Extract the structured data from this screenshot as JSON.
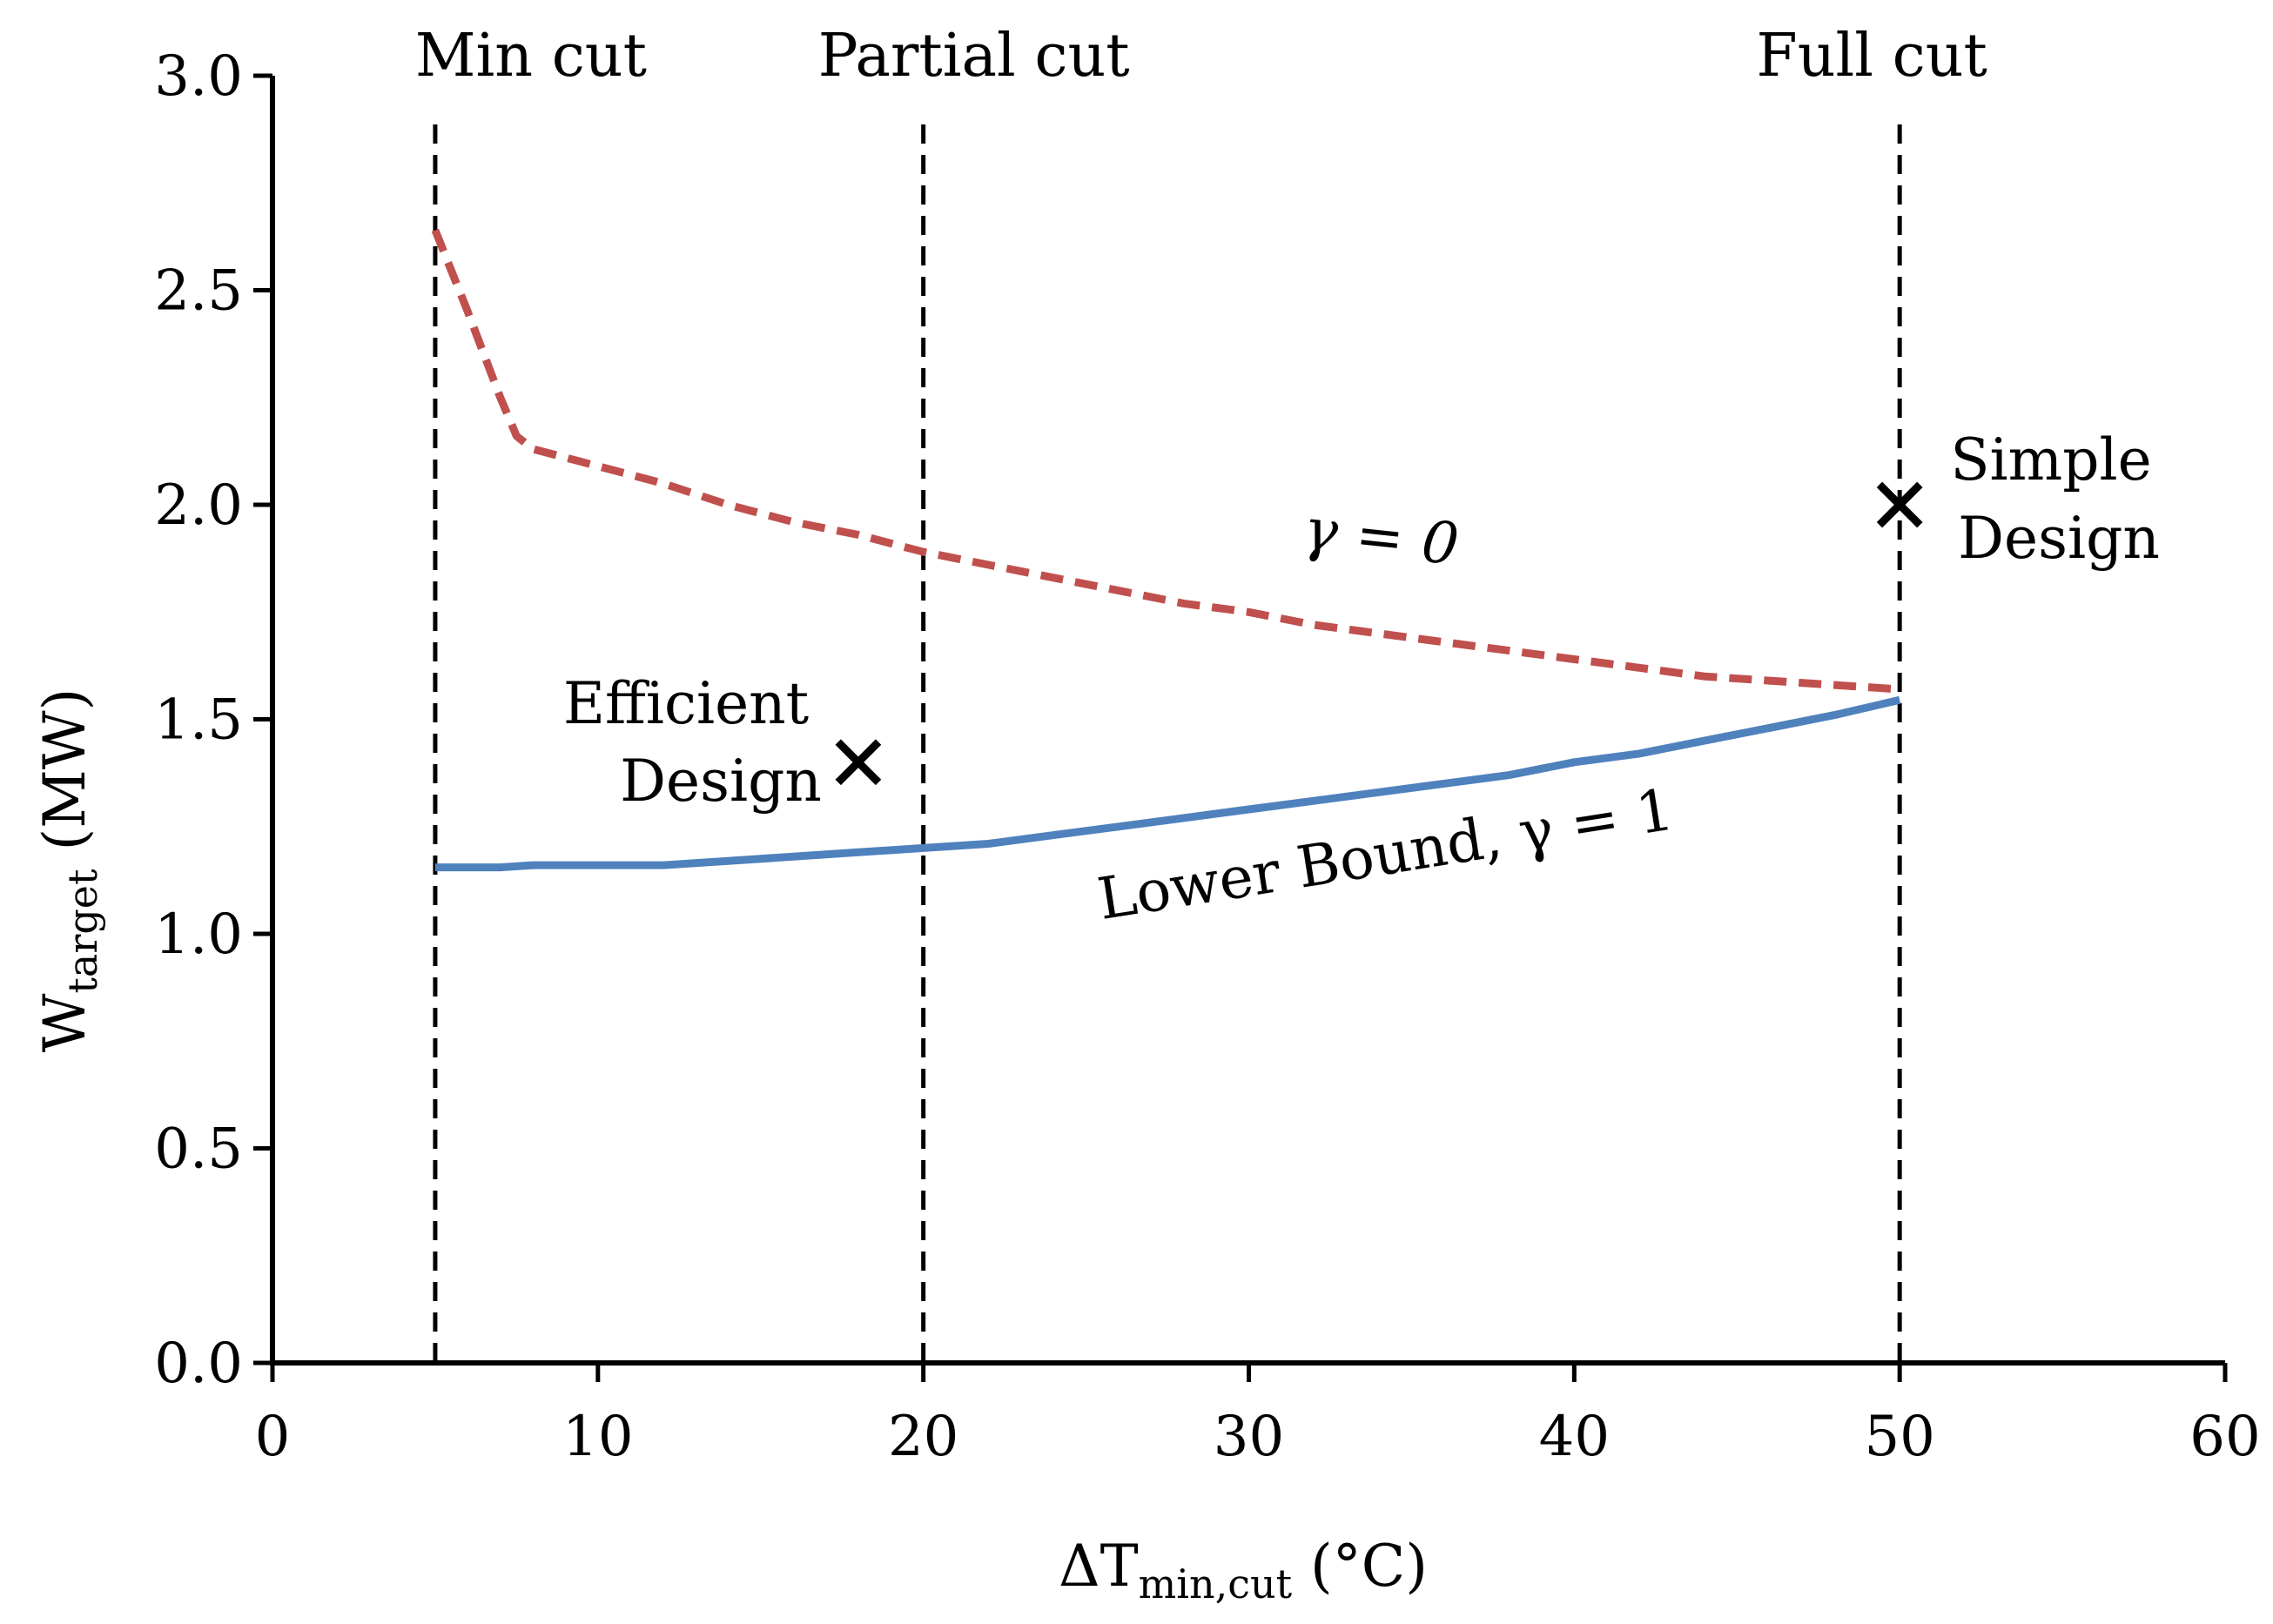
{
  "chart_data": {
    "type": "line",
    "title": "",
    "xlabel": {
      "main": "ΔT",
      "sub": "min,cut",
      "unit": " (°C)"
    },
    "ylabel": {
      "main": "W",
      "sub": "target",
      "unit": " (MW)"
    },
    "xlim": [
      0,
      60
    ],
    "ylim": [
      0,
      3.0
    ],
    "xticks": [
      0,
      10,
      20,
      30,
      40,
      50,
      60
    ],
    "xtick_labels": [
      "0",
      "10",
      "20",
      "30",
      "40",
      "50",
      "60"
    ],
    "yticks": [
      0,
      0.5,
      1.0,
      1.5,
      2.0,
      2.5,
      3.0
    ],
    "ytick_labels": [
      "0.0",
      "0.5",
      "1.0",
      "1.5",
      "2.0",
      "2.5",
      "3.0"
    ],
    "grid": false,
    "series": [
      {
        "name": "γ = 0",
        "style": "dashed",
        "color": "#C0504D",
        "x": [
          5,
          6,
          7,
          7.5,
          8,
          10,
          12,
          14,
          16,
          18,
          20,
          22,
          24,
          26,
          28,
          30,
          32,
          34,
          36,
          38,
          40,
          42,
          44,
          46,
          48,
          50
        ],
        "y": [
          2.64,
          2.45,
          2.25,
          2.16,
          2.13,
          2.09,
          2.05,
          2.0,
          1.96,
          1.93,
          1.89,
          1.86,
          1.83,
          1.8,
          1.77,
          1.75,
          1.72,
          1.7,
          1.68,
          1.66,
          1.64,
          1.62,
          1.6,
          1.59,
          1.58,
          1.57
        ]
      },
      {
        "name": "Lower Bound, γ = 1",
        "style": "solid",
        "color": "#4F81BD",
        "x": [
          5,
          7,
          8,
          10,
          12,
          14,
          16,
          18,
          20,
          22,
          24,
          26,
          28,
          30,
          32,
          34,
          36,
          38,
          40,
          42,
          44,
          46,
          48,
          50
        ],
        "y": [
          1.155,
          1.155,
          1.16,
          1.16,
          1.16,
          1.17,
          1.18,
          1.19,
          1.2,
          1.21,
          1.23,
          1.25,
          1.27,
          1.29,
          1.31,
          1.33,
          1.35,
          1.37,
          1.4,
          1.42,
          1.45,
          1.48,
          1.51,
          1.545
        ]
      }
    ],
    "vertical_lines": [
      {
        "x": 5,
        "label": "Min cut"
      },
      {
        "x": 20,
        "label": "Partial cut"
      },
      {
        "x": 50,
        "label": "Full cut"
      }
    ],
    "points": [
      {
        "name": "efficient",
        "x": 18,
        "y": 1.4,
        "marker": "×",
        "label_lines": [
          "Efficient",
          "Design"
        ]
      },
      {
        "name": "simple",
        "x": 50,
        "y": 2.0,
        "marker": "×",
        "label_lines": [
          "Simple",
          "Design"
        ]
      }
    ],
    "series_labels": {
      "gamma0": {
        "text": "γ = 0",
        "x": 34,
        "y": 1.88
      },
      "gamma1": {
        "text": "Lower Bound, γ = 1",
        "x": 34.3,
        "y": 1.14,
        "angle_deg": -9
      }
    }
  }
}
